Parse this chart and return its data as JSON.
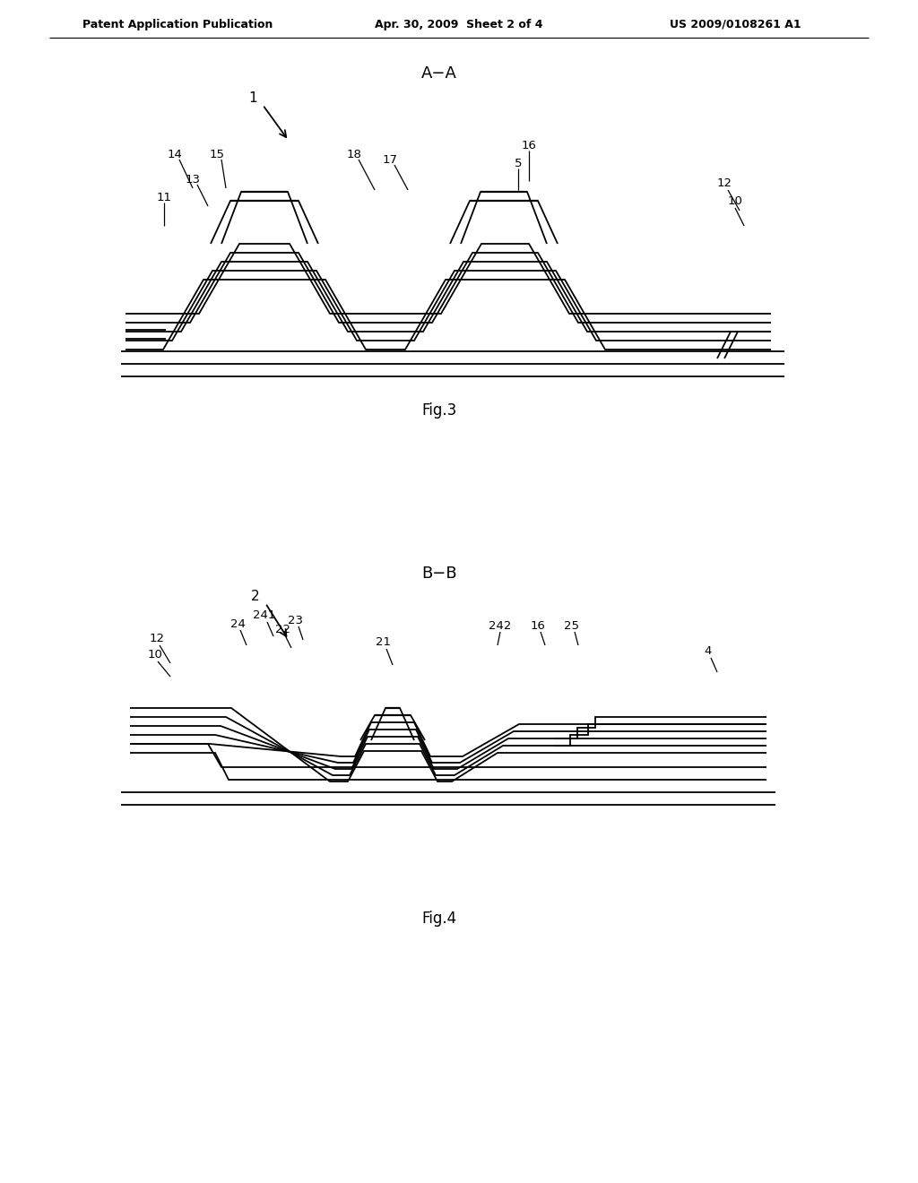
{
  "bg_color": "#ffffff",
  "line_color": "#000000",
  "header_left": "Patent Application Publication",
  "header_center": "Apr. 30, 2009  Sheet 2 of 4",
  "header_right": "US 2009/0108261 A1",
  "fig3_label": "Fig.3",
  "fig4_label": "Fig.4",
  "fig3_title": "A−A",
  "fig4_title": "B−B",
  "fig3_ref": "1",
  "fig4_ref": "2"
}
